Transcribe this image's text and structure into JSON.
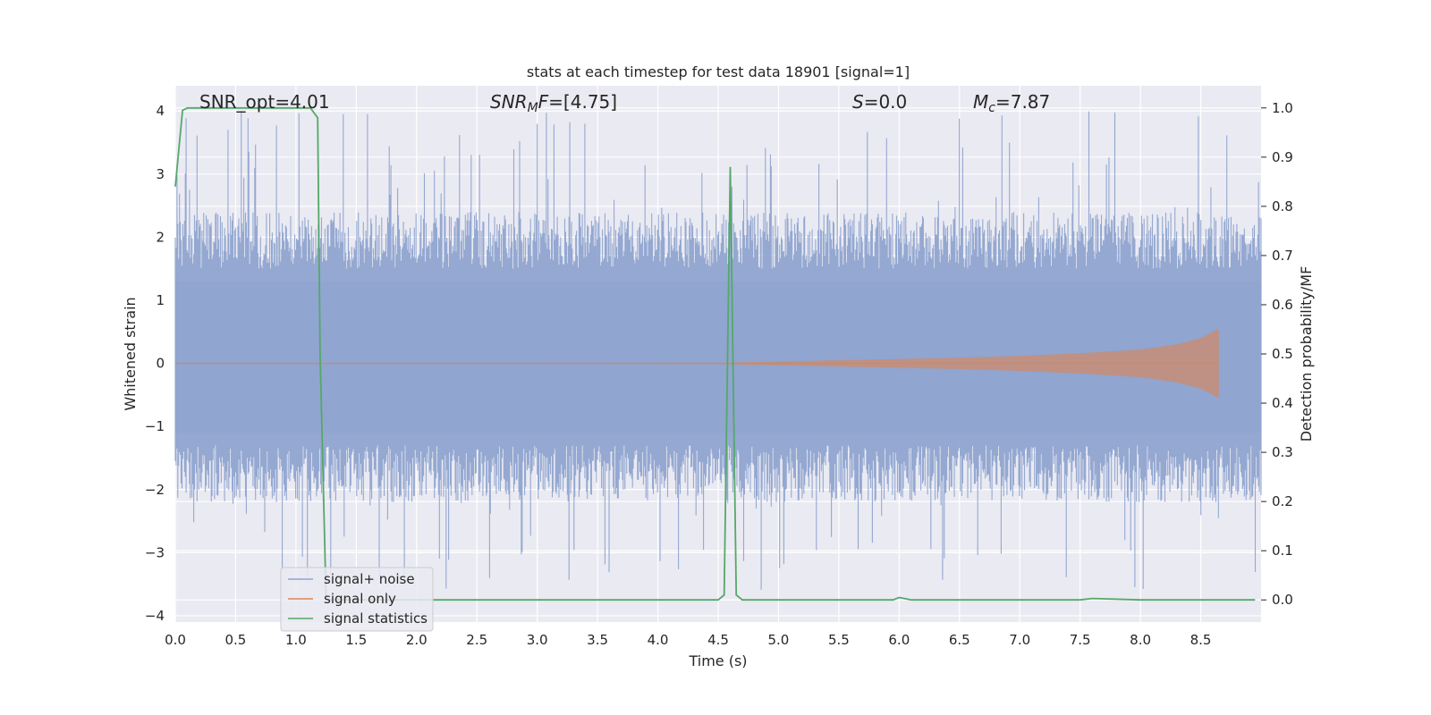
{
  "chart_data": {
    "type": "line",
    "title": "stats at each timestep for test data 18901 [signal=1]",
    "xlabel": "Time (s)",
    "ylabel_left": "Whitened strain",
    "ylabel_right": "Detection probability/MF",
    "xlim": [
      0.0,
      9.0
    ],
    "ylim_left": [
      -4.1,
      4.4
    ],
    "ylim_right": [
      -0.045,
      1.045
    ],
    "x_ticks": [
      "0.0",
      "0.5",
      "1.0",
      "1.5",
      "2.0",
      "2.5",
      "3.0",
      "3.5",
      "4.0",
      "4.5",
      "5.0",
      "5.5",
      "6.0",
      "6.5",
      "7.0",
      "7.5",
      "8.0",
      "8.5"
    ],
    "y_left_ticks": [
      "4",
      "3",
      "2",
      "1",
      "0",
      "−1",
      "−2",
      "−3",
      "−4"
    ],
    "y_right_ticks": [
      "1.0",
      "0.9",
      "0.8",
      "0.7",
      "0.6",
      "0.5",
      "0.4",
      "0.3",
      "0.2",
      "0.1",
      "0.0"
    ],
    "grid": true,
    "legend_position": "lower-left",
    "annotations": {
      "snr_opt": "SNR_opt=4.01",
      "snr_mf_base": "SNR",
      "snr_mf_sub": "M",
      "snr_mf_f": "F",
      "snr_mf_value": "=[4.75]",
      "s_var": "S",
      "s_value": "=0.0",
      "mc_base": "M",
      "mc_sub": "c",
      "mc_value": "=7.87"
    },
    "series": [
      {
        "name": "signal+ noise",
        "color": "#8fa4cf",
        "kind": "noise-band",
        "envelope_typical": [
          -1.6,
          1.8
        ],
        "extreme_range": [
          -3.6,
          4.0
        ],
        "x_range": [
          0.0,
          9.0
        ]
      },
      {
        "name": "signal only",
        "color": "#dd8452",
        "kind": "chirp",
        "x_range": [
          0.0,
          8.65
        ],
        "amplitude": [
          [
            0.0,
            0.0
          ],
          [
            4.5,
            0.01
          ],
          [
            5.0,
            0.03
          ],
          [
            5.5,
            0.05
          ],
          [
            6.0,
            0.07
          ],
          [
            6.5,
            0.09
          ],
          [
            7.0,
            0.12
          ],
          [
            7.5,
            0.16
          ],
          [
            8.0,
            0.22
          ],
          [
            8.3,
            0.3
          ],
          [
            8.5,
            0.4
          ],
          [
            8.6,
            0.5
          ],
          [
            8.65,
            0.55
          ]
        ]
      },
      {
        "name": "signal statistics",
        "color": "#55a868",
        "kind": "line",
        "axis": "right",
        "x": [
          0.0,
          0.06,
          0.1,
          0.2,
          0.5,
          1.0,
          1.12,
          1.18,
          1.2,
          1.25,
          1.3,
          2.0,
          3.0,
          4.0,
          4.5,
          4.55,
          4.6,
          4.65,
          4.7,
          4.8,
          5.0,
          5.5,
          5.95,
          6.0,
          6.1,
          6.5,
          7.0,
          7.5,
          7.6,
          8.0,
          8.5,
          8.95
        ],
        "y": [
          0.84,
          0.995,
          1.0,
          1.0,
          1.0,
          1.0,
          1.0,
          0.98,
          0.5,
          0.0,
          0.0,
          0.0,
          0.0,
          0.0,
          0.0,
          0.01,
          0.88,
          0.01,
          0.0,
          0.0,
          0.0,
          0.0,
          0.0,
          0.005,
          0.0,
          0.0,
          0.0,
          0.0,
          0.003,
          0.0,
          0.0,
          0.0
        ]
      }
    ]
  }
}
